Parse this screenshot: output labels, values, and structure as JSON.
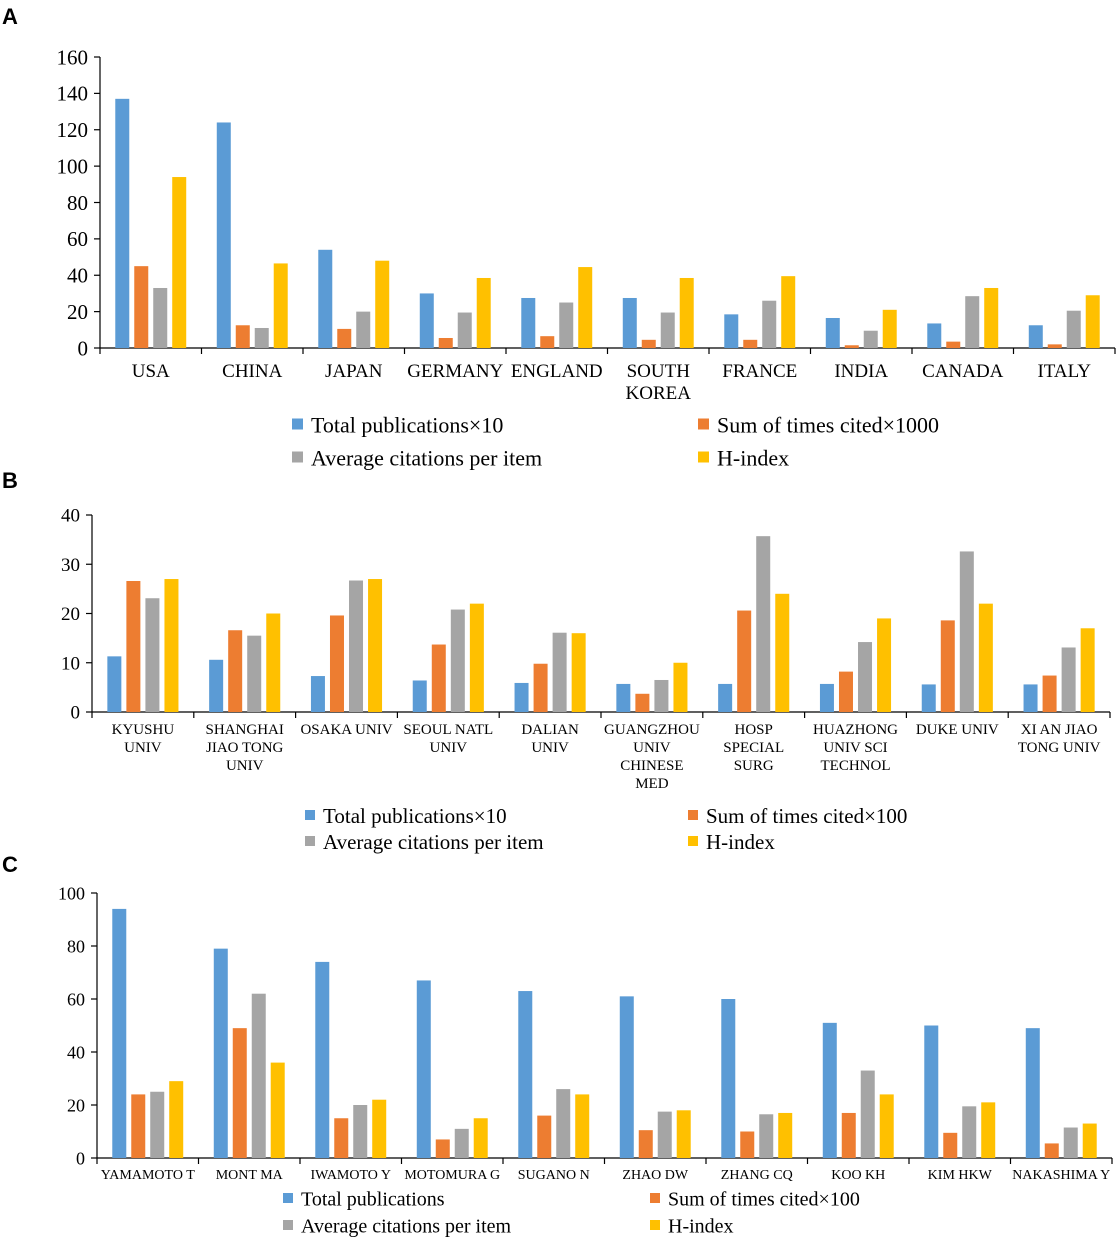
{
  "panels": [
    {
      "letter": "A",
      "chart_data": {
        "type": "bar",
        "categories": [
          [
            "USA"
          ],
          [
            "CHINA"
          ],
          [
            "JAPAN"
          ],
          [
            "GERMANY"
          ],
          [
            "ENGLAND"
          ],
          [
            "SOUTH",
            "KOREA"
          ],
          [
            "FRANCE"
          ],
          [
            "INDIA"
          ],
          [
            "CANADA"
          ],
          [
            "ITALY"
          ]
        ],
        "series": [
          {
            "name": "Total publications×10",
            "color": "#5B9BD5",
            "values": [
              137,
              124,
              54,
              30,
              27.5,
              27.5,
              18.5,
              16.5,
              13.5,
              12.5
            ]
          },
          {
            "name": "Sum of times cited×1000",
            "color": "#ED7D31",
            "values": [
              45,
              12.5,
              10.5,
              5.5,
              6.5,
              4.5,
              4.5,
              1.5,
              3.5,
              2
            ]
          },
          {
            "name": "Average citations per item",
            "color": "#A5A5A5",
            "values": [
              33,
              11,
              20,
              19.5,
              25,
              19.5,
              26,
              9.5,
              28.5,
              20.5
            ]
          },
          {
            "name": "H-index",
            "color": "#FFC000",
            "values": [
              94,
              46.5,
              48,
              38.5,
              44.5,
              38.5,
              39.5,
              21,
              33,
              29
            ]
          }
        ],
        "yticks": [
          0,
          20,
          40,
          60,
          80,
          100,
          120,
          140,
          160
        ],
        "ylim": [
          0,
          160
        ],
        "title": "",
        "xlabel": "",
        "ylabel": ""
      }
    },
    {
      "letter": "B",
      "chart_data": {
        "type": "bar",
        "categories": [
          [
            "KYUSHU",
            "UNIV"
          ],
          [
            "SHANGHAI",
            "JIAO TONG",
            "UNIV"
          ],
          [
            "OSAKA UNIV"
          ],
          [
            "SEOUL NATL",
            "UNIV"
          ],
          [
            "DALIAN",
            "UNIV"
          ],
          [
            "GUANGZHOU",
            "UNIV",
            "CHINESE",
            "MED"
          ],
          [
            "HOSP",
            "SPECIAL",
            "SURG"
          ],
          [
            "HUAZHONG",
            "UNIV SCI",
            "TECHNOL"
          ],
          [
            "DUKE UNIV"
          ],
          [
            "XI AN JIAO",
            "TONG UNIV"
          ]
        ],
        "series": [
          {
            "name": "Total publications×10",
            "color": "#5B9BD5",
            "values": [
              11.3,
              10.6,
              7.3,
              6.4,
              5.9,
              5.7,
              5.7,
              5.7,
              5.6,
              5.6
            ]
          },
          {
            "name": "Sum of times cited×100",
            "color": "#ED7D31",
            "values": [
              26.6,
              16.6,
              19.6,
              13.7,
              9.8,
              3.7,
              20.6,
              8.2,
              18.6,
              7.4
            ]
          },
          {
            "name": "Average citations per item",
            "color": "#A5A5A5",
            "values": [
              23.1,
              15.5,
              26.7,
              20.8,
              16.1,
              6.5,
              35.7,
              14.2,
              32.6,
              13.1
            ]
          },
          {
            "name": "H-index",
            "color": "#FFC000",
            "values": [
              27,
              20,
              27,
              22,
              16,
              10,
              24,
              19,
              22,
              17
            ]
          }
        ],
        "yticks": [
          0,
          10,
          20,
          30,
          40
        ],
        "ylim": [
          0,
          40
        ],
        "title": "",
        "xlabel": "",
        "ylabel": ""
      }
    },
    {
      "letter": "C",
      "chart_data": {
        "type": "bar",
        "categories": [
          [
            "YAMAMOTO T"
          ],
          [
            "MONT MA"
          ],
          [
            "IWAMOTO Y"
          ],
          [
            "MOTOMURA G"
          ],
          [
            "SUGANO N"
          ],
          [
            "ZHAO DW"
          ],
          [
            "ZHANG CQ"
          ],
          [
            "KOO KH"
          ],
          [
            "KIM HKW"
          ],
          [
            "NAKASHIMA Y"
          ]
        ],
        "series": [
          {
            "name": "Total publications",
            "color": "#5B9BD5",
            "values": [
              94,
              79,
              74,
              67,
              63,
              61,
              60,
              51,
              50,
              49
            ]
          },
          {
            "name": "Sum of times cited×100",
            "color": "#ED7D31",
            "values": [
              24,
              49,
              15,
              7,
              16,
              10.5,
              10,
              17,
              9.5,
              5.5
            ]
          },
          {
            "name": "Average citations per item",
            "color": "#A5A5A5",
            "values": [
              25,
              62,
              20,
              11,
              26,
              17.5,
              16.5,
              33,
              19.5,
              11.5
            ]
          },
          {
            "name": "H-index",
            "color": "#FFC000",
            "values": [
              29,
              36,
              22,
              15,
              24,
              18,
              17,
              24,
              21,
              13
            ]
          }
        ],
        "yticks": [
          0,
          20,
          40,
          60,
          80,
          100
        ],
        "ylim": [
          0,
          100
        ],
        "title": "",
        "xlabel": "",
        "ylabel": ""
      }
    }
  ]
}
